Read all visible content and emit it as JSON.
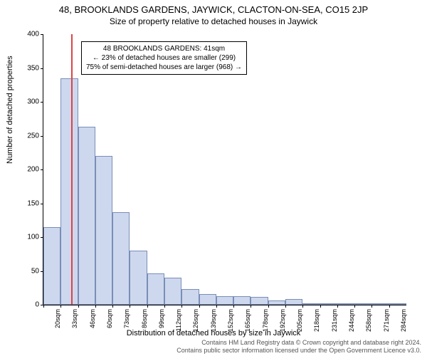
{
  "titles": {
    "main": "48, BROOKLANDS GARDENS, JAYWICK, CLACTON-ON-SEA, CO15 2JP",
    "sub": "Size of property relative to detached houses in Jaywick"
  },
  "axes": {
    "ylabel": "Number of detached properties",
    "xlabel": "Distribution of detached houses by size in Jaywick",
    "ylim": [
      0,
      400
    ],
    "ytick_step": 50,
    "label_fontsize": 11,
    "tick_fontsize": 10
  },
  "chart": {
    "type": "histogram",
    "bar_color": "#cdd8ee",
    "bar_border_color": "#7a8db8",
    "highlight_color": "#d44",
    "background_color": "#ffffff",
    "bin_start": 20,
    "bin_width": 13,
    "bins": [
      {
        "label": "20sqm",
        "value": 115
      },
      {
        "label": "33sqm",
        "value": 335
      },
      {
        "label": "46sqm",
        "value": 263
      },
      {
        "label": "60sqm",
        "value": 220
      },
      {
        "label": "73sqm",
        "value": 137
      },
      {
        "label": "86sqm",
        "value": 80
      },
      {
        "label": "99sqm",
        "value": 46
      },
      {
        "label": "112sqm",
        "value": 40
      },
      {
        "label": "126sqm",
        "value": 23
      },
      {
        "label": "139sqm",
        "value": 16
      },
      {
        "label": "152sqm",
        "value": 13
      },
      {
        "label": "165sqm",
        "value": 13
      },
      {
        "label": "178sqm",
        "value": 12
      },
      {
        "label": "192sqm",
        "value": 6
      },
      {
        "label": "205sqm",
        "value": 8
      },
      {
        "label": "218sqm",
        "value": 2
      },
      {
        "label": "231sqm",
        "value": 2
      },
      {
        "label": "244sqm",
        "value": 2
      },
      {
        "label": "258sqm",
        "value": 1
      },
      {
        "label": "271sqm",
        "value": 1
      },
      {
        "label": "284sqm",
        "value": 0
      }
    ],
    "highlight_x_sqm": 41
  },
  "annotation": {
    "line1": "48 BROOKLANDS GARDENS: 41sqm",
    "line2": "← 23% of detached houses are smaller (299)",
    "line3": "75% of semi-detached houses are larger (968) →"
  },
  "footer": {
    "line1": "Contains HM Land Registry data © Crown copyright and database right 2024.",
    "line2": "Contains public sector information licensed under the Open Government Licence v3.0."
  }
}
